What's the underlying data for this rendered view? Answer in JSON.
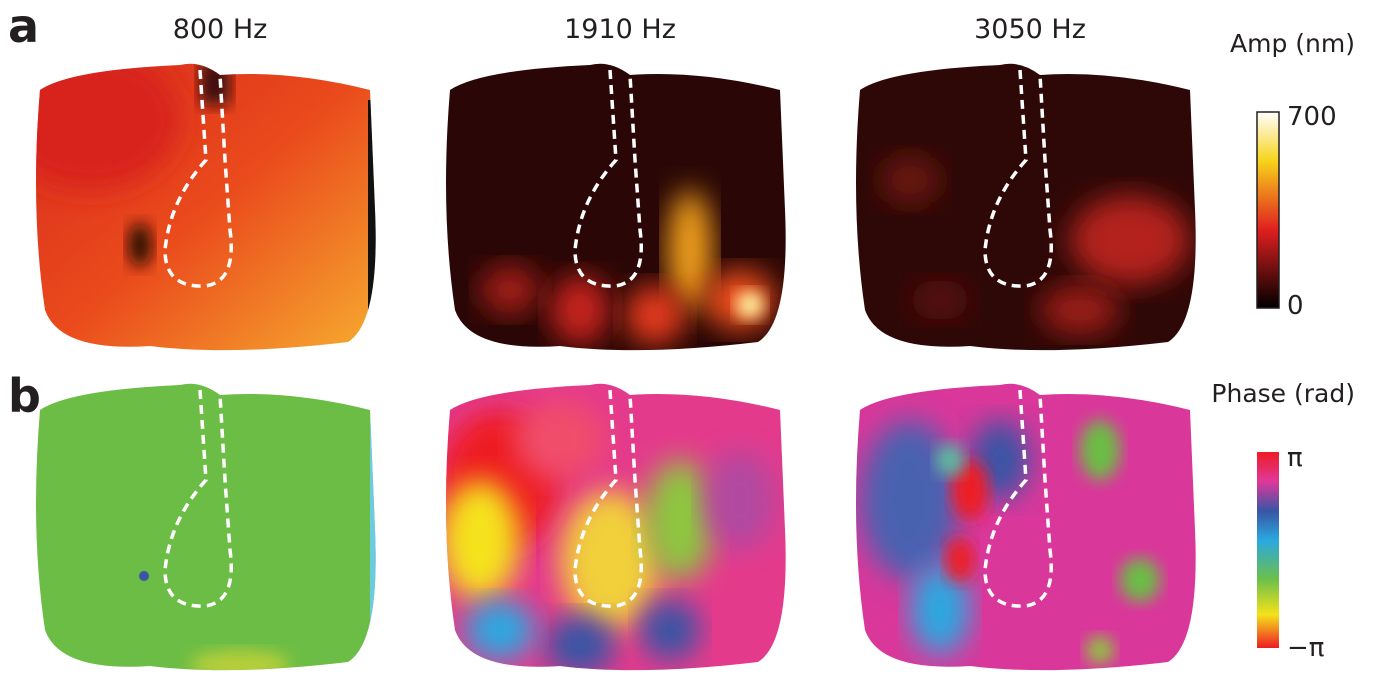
{
  "panels": [
    {
      "letter": "a"
    },
    {
      "letter": "b"
    }
  ],
  "frequencies": [
    "800 Hz",
    "1910 Hz",
    "3050 Hz"
  ],
  "colorbars": [
    {
      "title": "Amp (nm)",
      "max_label": "700",
      "min_label": "0"
    },
    {
      "title": "Phase (rad)",
      "max_label": "π",
      "min_label": "−π"
    }
  ]
}
